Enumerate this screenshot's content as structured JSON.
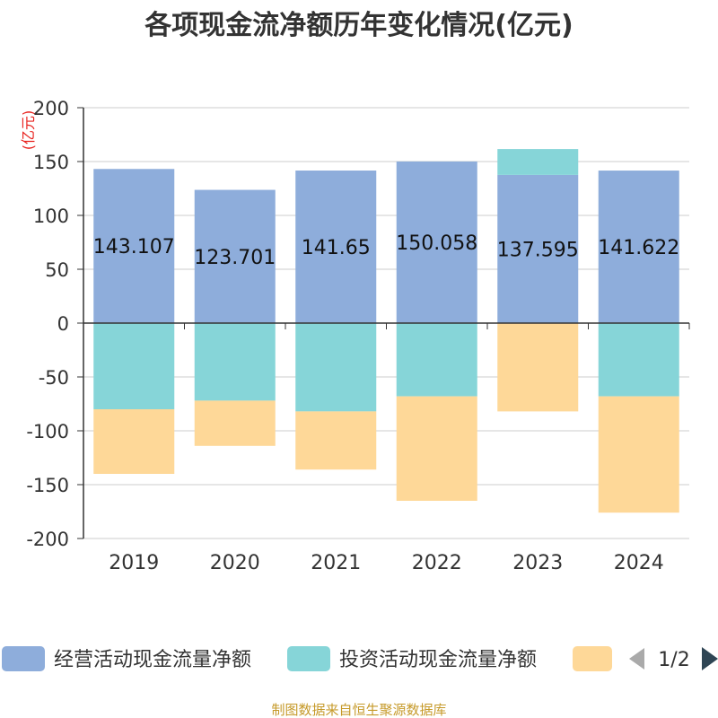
{
  "chart_data": {
    "type": "bar",
    "stacked": true,
    "title": "各项现金流净额历年变化情况(亿元)",
    "ylabel": "(亿元)",
    "xlabel": "",
    "ylim": [
      -200,
      200
    ],
    "yticks": [
      200,
      150,
      100,
      50,
      0,
      -50,
      -100,
      -150,
      -200
    ],
    "categories": [
      "2019",
      "2020",
      "2021",
      "2022",
      "2023",
      "2024"
    ],
    "series": [
      {
        "name": "经营活动现金流量净额",
        "color": "#8eaddb",
        "values": [
          143.107,
          123.701,
          141.65,
          150.058,
          137.595,
          141.622
        ],
        "labels": [
          "143.107",
          "123.701",
          "141.65",
          "150.058",
          "137.595",
          "141.622"
        ]
      },
      {
        "name": "投资活动现金流量净额",
        "color": "#86d5d8",
        "values": [
          -80,
          -72,
          -82,
          -68,
          24,
          -68
        ]
      },
      {
        "name": "",
        "color": "#fed898",
        "values": [
          -60,
          -42,
          -54,
          -97,
          -82,
          -108
        ]
      }
    ],
    "legend": {
      "position": "bottom",
      "page": "1/2"
    },
    "source": "制图数据来自恒生聚源数据库"
  }
}
